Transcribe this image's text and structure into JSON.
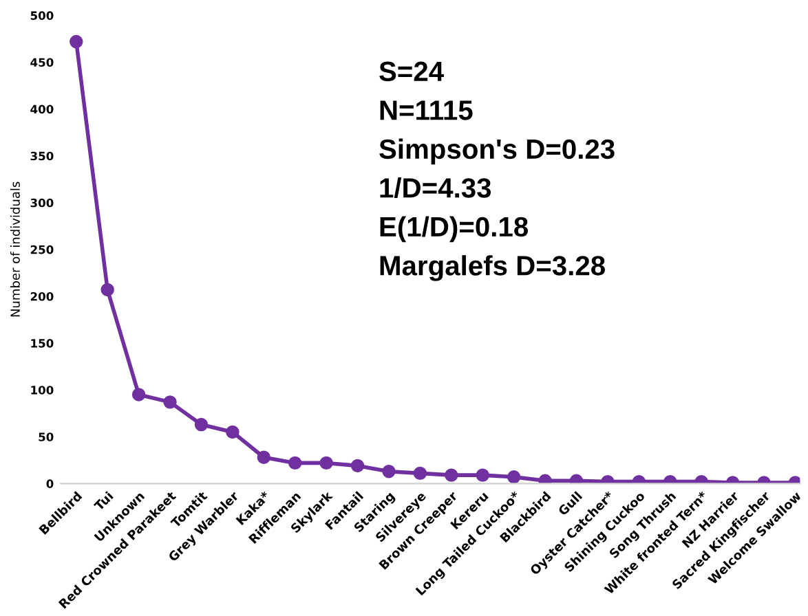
{
  "chart_data": {
    "type": "line",
    "ylabel": "Number of individuals",
    "categories": [
      "Bellbird",
      "Tui",
      "Unknown",
      "Red Crowned Parakeet",
      "Tomtit",
      "Grey Warbler",
      "Kaka*",
      "Riffleman",
      "Skylark",
      "Fantail",
      "Staring",
      "Silvereye",
      "Brown Creeper",
      "Kereru",
      "Long Tailed Cuckoo*",
      "Blackbird",
      "Gull",
      "Oyster Catcher*",
      "Shining Cuckoo",
      "Song Thrush",
      "White fronted Tern*",
      "NZ Harrier",
      "Sacred Kingfischer",
      "Welcome Swallow"
    ],
    "series": [
      {
        "color": "#7030a0",
        "values": [
          472,
          207,
          95,
          87,
          63,
          55,
          28,
          22,
          22,
          19,
          13,
          11,
          9,
          9,
          7,
          3,
          3,
          2,
          2,
          2,
          2,
          1,
          1,
          1
        ]
      }
    ],
    "ylim": [
      0,
      500
    ],
    "yticks": [
      0,
      50,
      100,
      150,
      200,
      250,
      300,
      350,
      400,
      450,
      500
    ],
    "marker": "circle",
    "line_style": "solid",
    "grid": false,
    "annotations": [
      "S=24",
      "N=1115",
      "Simpson's D=0.23",
      "1/D=4.33",
      "E(1/D)=0.18",
      "Margalefs D=3.28"
    ]
  }
}
